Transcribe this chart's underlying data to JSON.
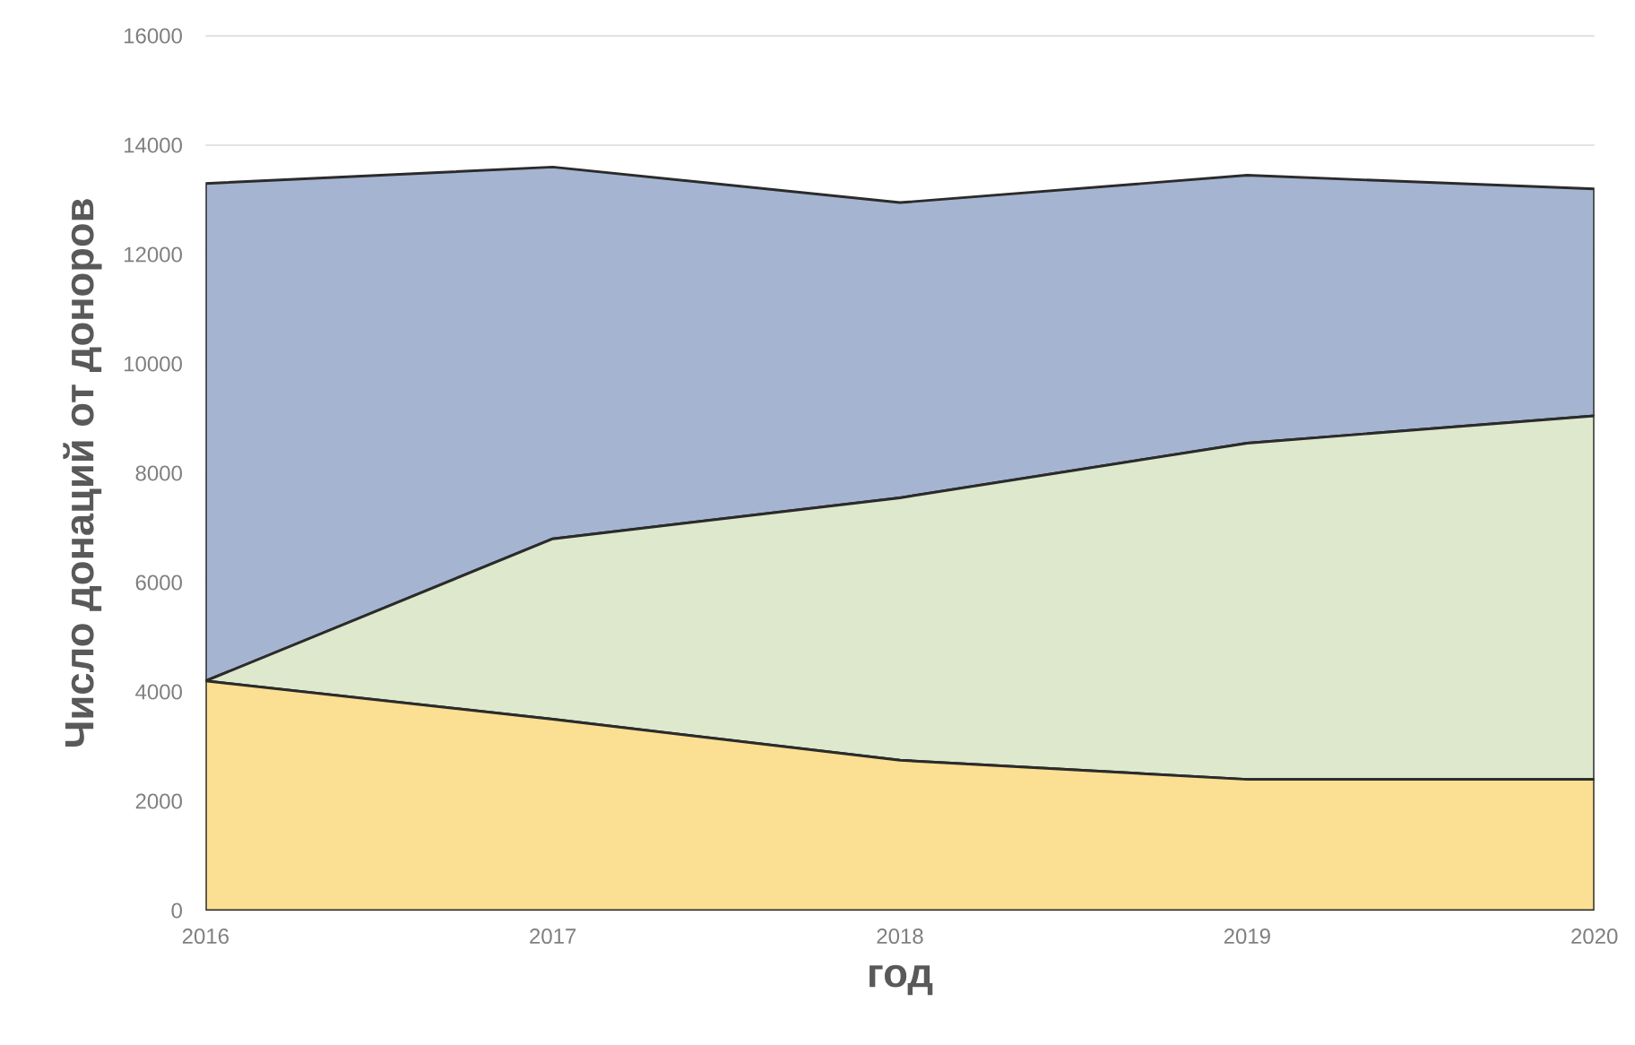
{
  "chart_data": {
    "type": "area",
    "stacked": true,
    "xlabel": "год",
    "ylabel": "Число донаций от доноров",
    "categories": [
      "2016",
      "2017",
      "2018",
      "2019",
      "2020"
    ],
    "series": [
      {
        "color": "#fbdf92",
        "values": [
          4200,
          3500,
          2750,
          2400,
          2400
        ]
      },
      {
        "color": "#dde8cc",
        "values": [
          0,
          3300,
          4800,
          6150,
          6650
        ]
      },
      {
        "color": "#a5b4d0",
        "values": [
          9100,
          6800,
          5400,
          4900,
          4150
        ]
      }
    ],
    "ylim": [
      0,
      16000
    ],
    "yticks": [
      0,
      2000,
      4000,
      6000,
      8000,
      10000,
      12000,
      14000,
      16000
    ],
    "grid": "y"
  }
}
